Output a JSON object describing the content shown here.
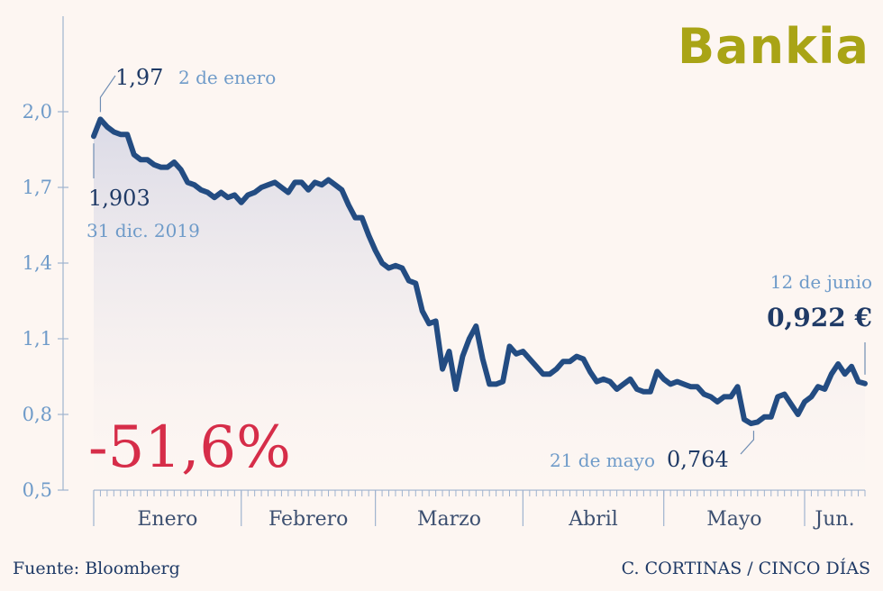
{
  "logo": "Bankia",
  "source": "Fuente: Bloomberg",
  "credit": "C. CORTINAS / CINCO DÍAS",
  "change_label": "-51,6%",
  "annotations": {
    "start_value": "1,903",
    "start_date": "31 dic. 2019",
    "max_value": "1,97",
    "max_date": "2 de enero",
    "min_value": "0,764",
    "min_date": "21 de mayo",
    "end_value": "0,922 €",
    "end_date": "12 de junio"
  },
  "colors": {
    "line": "#234c82",
    "axis": "#9fb3cf",
    "highlight": "#d62d49",
    "logo": "#a9a416"
  },
  "chart_data": {
    "type": "area",
    "title": "",
    "xlabel": "",
    "ylabel": "",
    "ylim": [
      0.5,
      2.0
    ],
    "yticks": [
      {
        "value": 0.5,
        "label": "0,5"
      },
      {
        "value": 0.8,
        "label": "0,8"
      },
      {
        "value": 1.1,
        "label": "1,1"
      },
      {
        "value": 1.4,
        "label": "1,4"
      },
      {
        "value": 1.7,
        "label": "1,7"
      },
      {
        "value": 2.0,
        "label": "2,0"
      }
    ],
    "months": [
      "Enero",
      "Febrero",
      "Marzo",
      "Abril",
      "Mayo",
      "Jun."
    ],
    "series": [
      {
        "values": [
          1.903,
          1.97,
          1.94,
          1.92,
          1.91,
          1.91,
          1.83,
          1.81,
          1.81,
          1.79,
          1.78,
          1.78,
          1.8,
          1.77,
          1.72,
          1.71,
          1.69,
          1.68,
          1.66,
          1.68,
          1.66,
          1.67,
          1.64,
          1.67,
          1.68,
          1.7,
          1.71,
          1.72,
          1.7,
          1.68,
          1.72,
          1.72,
          1.69,
          1.72,
          1.71,
          1.73,
          1.71,
          1.69,
          1.63,
          1.58,
          1.58,
          1.51,
          1.45,
          1.4,
          1.38,
          1.39,
          1.38,
          1.33,
          1.32,
          1.21,
          1.16,
          1.17,
          0.98,
          1.05,
          0.9,
          1.03,
          1.1,
          1.15,
          1.02,
          0.92,
          0.92,
          0.93,
          1.07,
          1.04,
          1.05,
          1.02,
          0.99,
          0.96,
          0.96,
          0.98,
          1.01,
          1.01,
          1.03,
          1.02,
          0.97,
          0.93,
          0.94,
          0.93,
          0.9,
          0.92,
          0.94,
          0.9,
          0.89,
          0.89,
          0.97,
          0.94,
          0.92,
          0.93,
          0.92,
          0.91,
          0.91,
          0.88,
          0.87,
          0.85,
          0.87,
          0.87,
          0.91,
          0.78,
          0.764,
          0.77,
          0.79,
          0.79,
          0.87,
          0.88,
          0.84,
          0.8,
          0.85,
          0.87,
          0.91,
          0.9,
          0.96,
          1.0,
          0.96,
          0.99,
          0.93,
          0.922
        ]
      }
    ]
  }
}
